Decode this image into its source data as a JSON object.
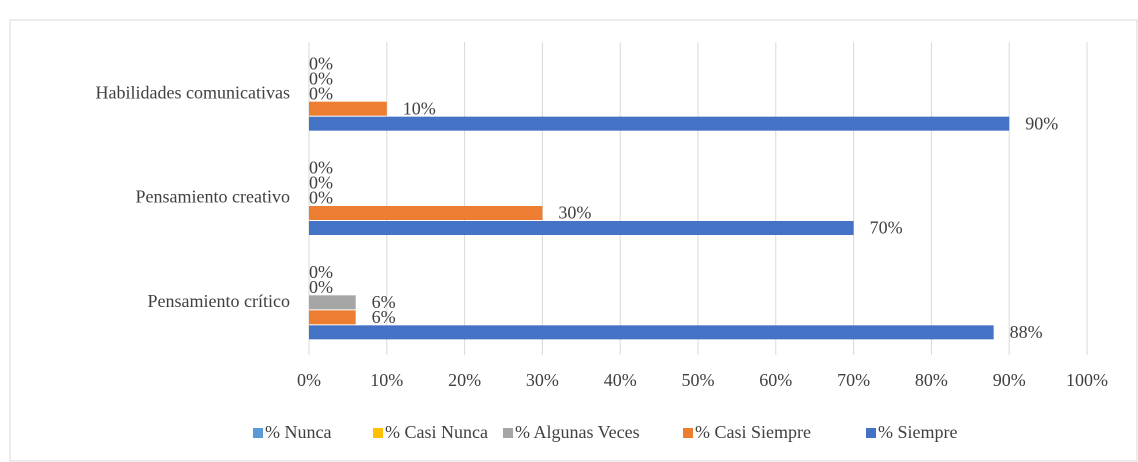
{
  "chart_data": {
    "type": "bar",
    "orientation": "horizontal",
    "categories": [
      "Habilidades comunicativas",
      "Pensamiento creativo",
      "Pensamiento crítico"
    ],
    "series": [
      {
        "name": "% Nunca",
        "color": "#5b9bd5",
        "values": [
          0,
          0,
          0
        ],
        "value_labels": [
          "0%",
          "0%",
          "0%"
        ]
      },
      {
        "name": "% Casi Nunca",
        "color": "#ffc000",
        "values": [
          0,
          0,
          0
        ],
        "value_labels": [
          "0%",
          "0%",
          "0%"
        ]
      },
      {
        "name": "% Algunas Veces",
        "color": "#a5a5a5",
        "values": [
          0,
          0,
          6
        ],
        "value_labels": [
          "0%",
          "0%",
          "6%"
        ]
      },
      {
        "name": "% Casi Siempre",
        "color": "#ed7d31",
        "values": [
          10,
          30,
          6
        ],
        "value_labels": [
          "10%",
          "30%",
          "6%"
        ]
      },
      {
        "name": "% Siempre",
        "color": "#4472c4",
        "values": [
          90,
          70,
          88
        ],
        "value_labels": [
          "90%",
          "70%",
          "88%"
        ]
      }
    ],
    "xlim": [
      0,
      100
    ],
    "xticks": [
      {
        "value": 0,
        "label": "0%"
      },
      {
        "value": 10,
        "label": "10%"
      },
      {
        "value": 20,
        "label": "20%"
      },
      {
        "value": 30,
        "label": "30%"
      },
      {
        "value": 40,
        "label": "40%"
      },
      {
        "value": 50,
        "label": "50%"
      },
      {
        "value": 60,
        "label": "60%"
      },
      {
        "value": 70,
        "label": "70%"
      },
      {
        "value": 80,
        "label": "80%"
      },
      {
        "value": 90,
        "label": "90%"
      },
      {
        "value": 100,
        "label": "100%"
      }
    ],
    "grid": true,
    "legend": "bottom"
  }
}
